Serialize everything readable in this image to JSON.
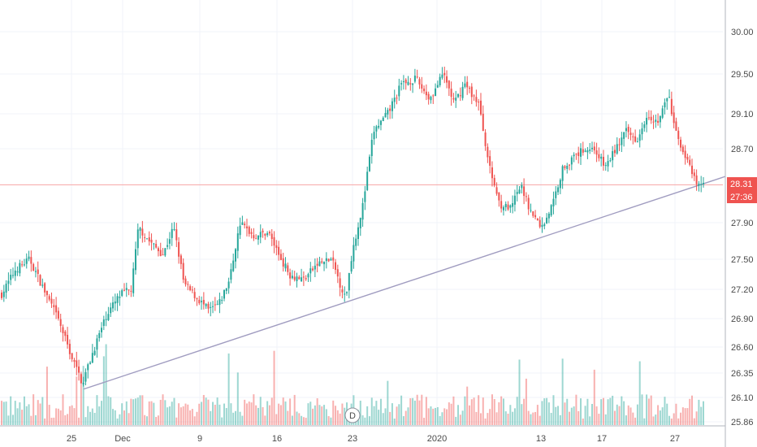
{
  "chart_data": {
    "type": "candlestick",
    "interval_marker": "D",
    "colors": {
      "up": "#26a69a",
      "down": "#ef5350",
      "trendline": "#a09cc0",
      "price_line": "#f7a5a4",
      "grid": "#f0f3fa",
      "axis": "#b2b5be"
    },
    "y_ticks": [
      "30.00",
      "29.50",
      "29.10",
      "28.70",
      "27.90",
      "27.50",
      "27.20",
      "26.90",
      "26.60",
      "26.35",
      "26.10",
      "25.86"
    ],
    "x_ticks": [
      "25",
      "Dec",
      "9",
      "16",
      "23",
      "2020",
      "13",
      "17",
      "27"
    ],
    "last_price_label": "28.31",
    "countdown_label": "27:36",
    "last_price": 28.31,
    "ylim": [
      25.8,
      30.2
    ],
    "trendline": {
      "from": [
        0,
        26.43
      ],
      "to": [
        1,
        28.4
      ]
    },
    "price_path": [
      [
        0,
        27.15
      ],
      [
        0.02,
        27.4
      ],
      [
        0.04,
        27.5
      ],
      [
        0.06,
        27.2
      ],
      [
        0.08,
        26.9
      ],
      [
        0.1,
        26.5
      ],
      [
        0.115,
        26.25
      ],
      [
        0.13,
        26.55
      ],
      [
        0.15,
        26.95
      ],
      [
        0.17,
        27.15
      ],
      [
        0.185,
        27.2
      ],
      [
        0.195,
        27.85
      ],
      [
        0.21,
        27.7
      ],
      [
        0.23,
        27.55
      ],
      [
        0.245,
        27.85
      ],
      [
        0.26,
        27.25
      ],
      [
        0.28,
        27.1
      ],
      [
        0.295,
        26.98
      ],
      [
        0.31,
        27.05
      ],
      [
        0.325,
        27.3
      ],
      [
        0.34,
        27.9
      ],
      [
        0.36,
        27.75
      ],
      [
        0.38,
        27.8
      ],
      [
        0.395,
        27.55
      ],
      [
        0.41,
        27.35
      ],
      [
        0.43,
        27.3
      ],
      [
        0.45,
        27.45
      ],
      [
        0.47,
        27.5
      ],
      [
        0.49,
        27.1
      ],
      [
        0.5,
        27.6
      ],
      [
        0.515,
        28.1
      ],
      [
        0.53,
        28.9
      ],
      [
        0.55,
        29.1
      ],
      [
        0.57,
        29.4
      ],
      [
        0.59,
        29.45
      ],
      [
        0.61,
        29.25
      ],
      [
        0.63,
        29.5
      ],
      [
        0.645,
        29.2
      ],
      [
        0.66,
        29.4
      ],
      [
        0.68,
        29.2
      ],
      [
        0.695,
        28.5
      ],
      [
        0.71,
        28.1
      ],
      [
        0.725,
        28.05
      ],
      [
        0.74,
        28.3
      ],
      [
        0.755,
        28.0
      ],
      [
        0.77,
        27.85
      ],
      [
        0.785,
        28.1
      ],
      [
        0.8,
        28.5
      ],
      [
        0.815,
        28.6
      ],
      [
        0.83,
        28.7
      ],
      [
        0.845,
        28.7
      ],
      [
        0.86,
        28.5
      ],
      [
        0.875,
        28.7
      ],
      [
        0.89,
        28.9
      ],
      [
        0.905,
        28.8
      ],
      [
        0.92,
        29.1
      ],
      [
        0.935,
        29.0
      ],
      [
        0.95,
        29.3
      ],
      [
        0.96,
        28.9
      ],
      [
        0.975,
        28.6
      ],
      [
        0.99,
        28.31
      ]
    ]
  }
}
